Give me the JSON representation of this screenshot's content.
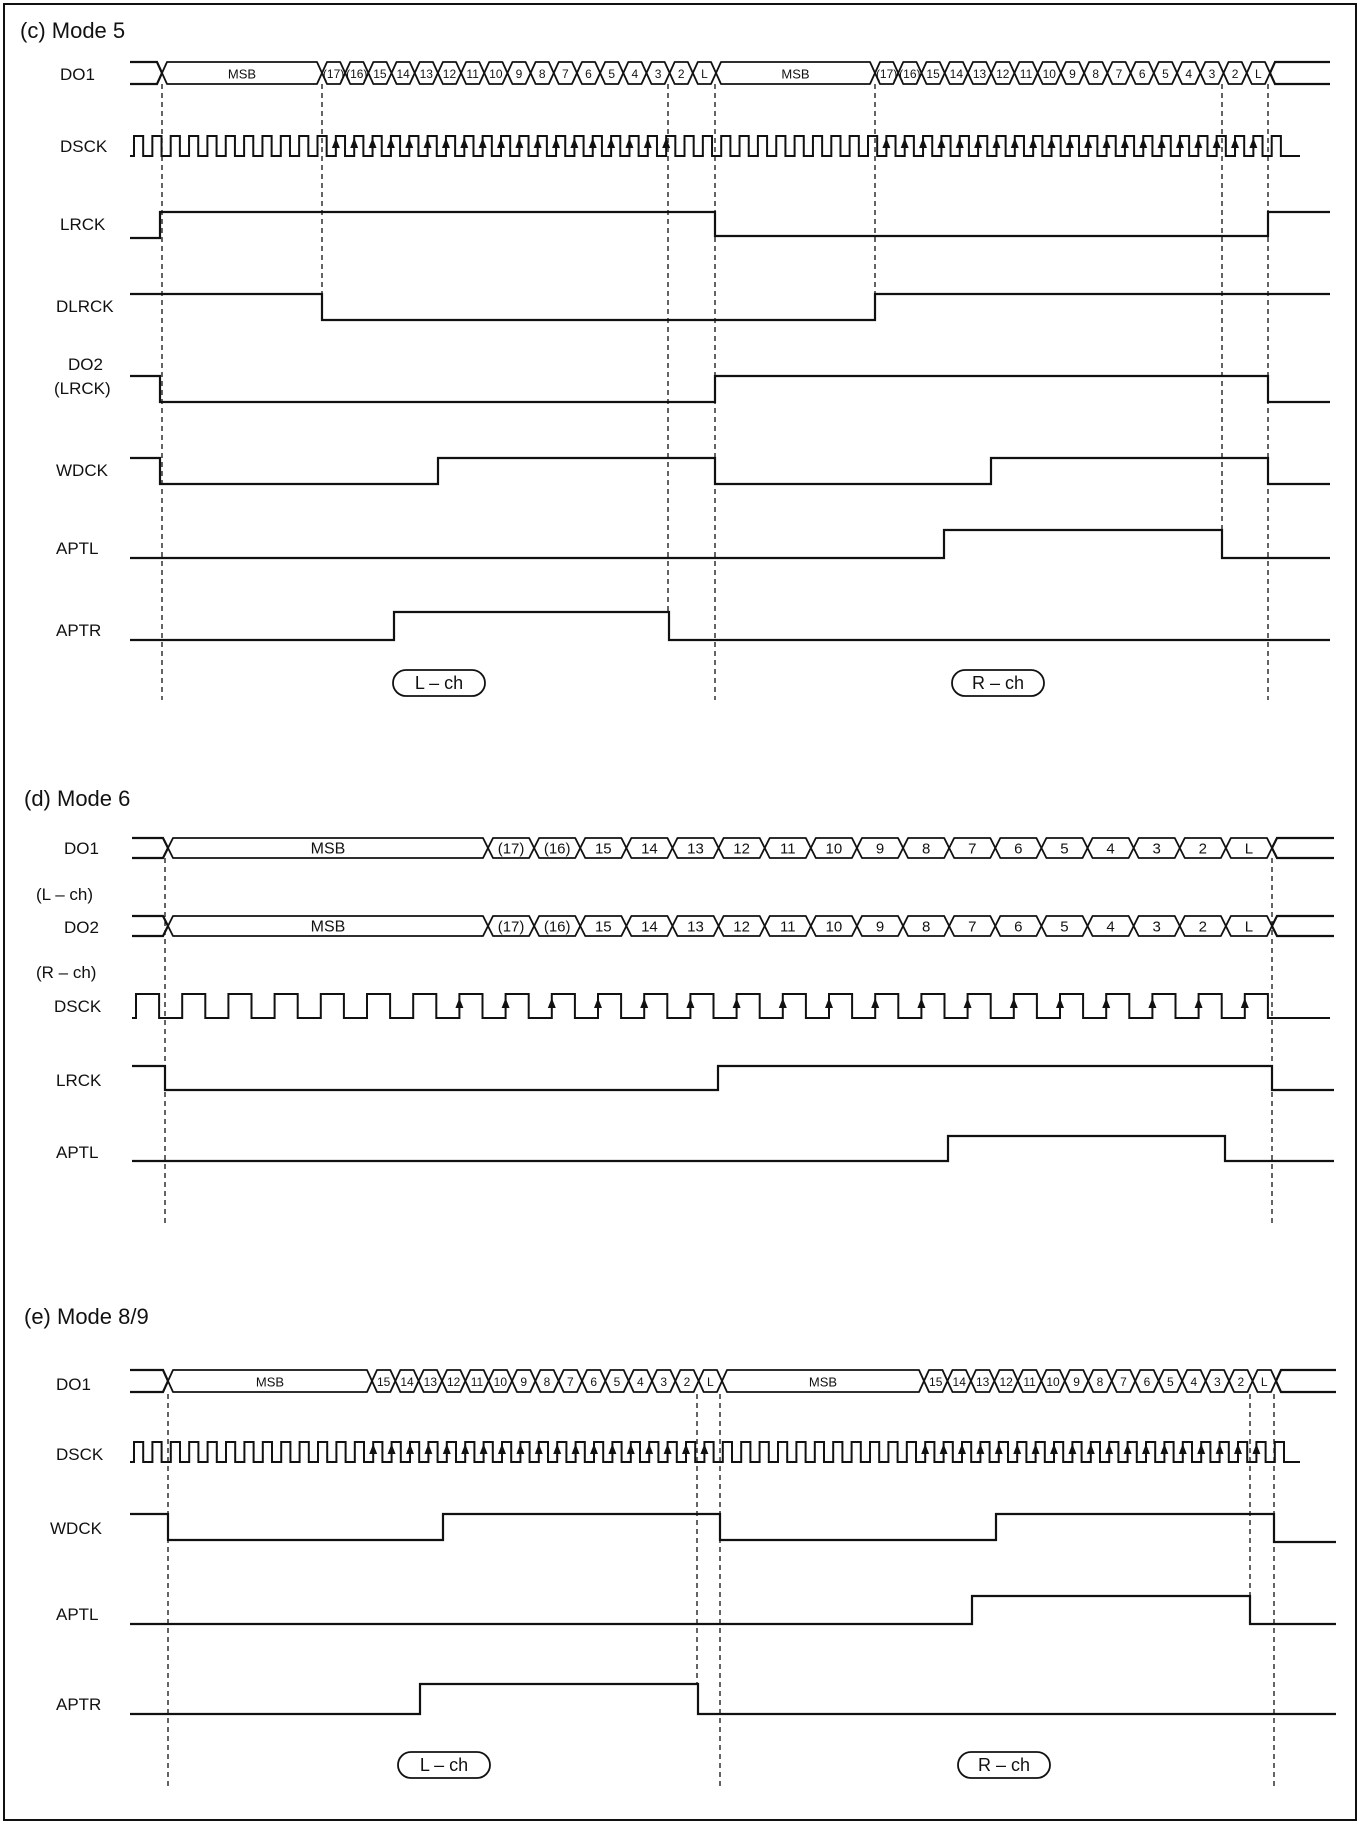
{
  "sections": [
    {
      "id": "mode5",
      "title": "(c)  Mode 5",
      "signals": [
        {
          "label": "DO1",
          "type": "bus"
        },
        {
          "label": "DSCK",
          "type": "clock"
        },
        {
          "label": "LRCK",
          "type": "level"
        },
        {
          "label": "DLRCK",
          "type": "level"
        },
        {
          "label": "DO2",
          "sublabel": "(LRCK)",
          "type": "level"
        },
        {
          "label": "WDCK",
          "type": "level"
        },
        {
          "label": "APTL",
          "type": "level"
        },
        {
          "label": "APTR",
          "type": "level"
        }
      ],
      "bus_fields": [
        "MSB",
        "(17)",
        "(16)",
        "15",
        "14",
        "13",
        "12",
        "11",
        "10",
        "9",
        "8",
        "7",
        "6",
        "5",
        "4",
        "3",
        "2",
        "L"
      ],
      "channel_labels": [
        "L – ch",
        "R – ch"
      ]
    },
    {
      "id": "mode6",
      "title": "(d)  Mode 6",
      "signals": [
        {
          "label": "DO1",
          "type": "bus"
        },
        {
          "label": "DO2",
          "type": "bus"
        },
        {
          "label": "DSCK",
          "type": "clock"
        },
        {
          "label": "LRCK",
          "type": "level"
        },
        {
          "label": "APTL",
          "type": "level"
        }
      ],
      "side_notes": [
        "(L – ch)",
        "(R – ch)"
      ],
      "bus_fields": [
        "MSB",
        "(17)",
        "(16)",
        "15",
        "14",
        "13",
        "12",
        "11",
        "10",
        "9",
        "8",
        "7",
        "6",
        "5",
        "4",
        "3",
        "2",
        "L"
      ]
    },
    {
      "id": "mode89",
      "title": "(e)  Mode 8/9",
      "signals": [
        {
          "label": "DO1",
          "type": "bus"
        },
        {
          "label": "DSCK",
          "type": "clock"
        },
        {
          "label": "WDCK",
          "type": "level"
        },
        {
          "label": "APTL",
          "type": "level"
        },
        {
          "label": "APTR",
          "type": "level"
        }
      ],
      "bus_fields": [
        "MSB",
        "15",
        "14",
        "13",
        "12",
        "11",
        "10",
        "9",
        "8",
        "7",
        "6",
        "5",
        "4",
        "3",
        "2",
        "L"
      ],
      "channel_labels": [
        "L – ch",
        "R – ch"
      ]
    }
  ]
}
